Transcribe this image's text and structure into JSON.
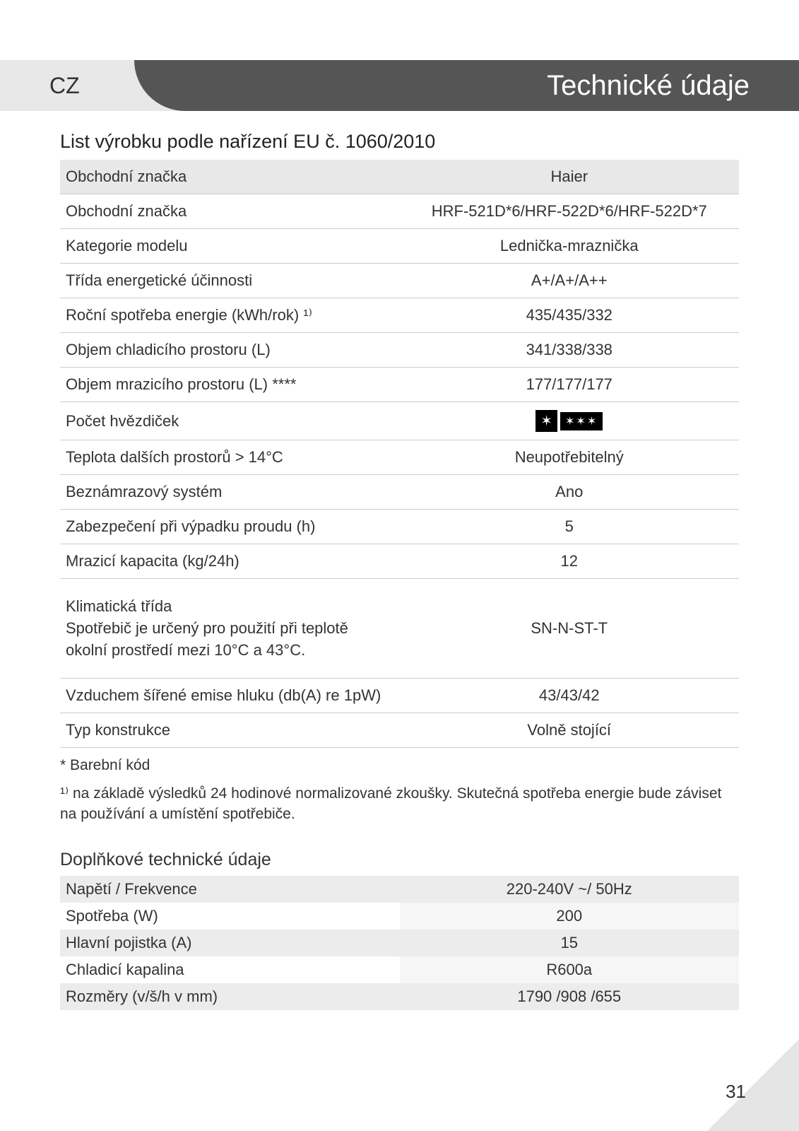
{
  "header": {
    "lang_code": "CZ",
    "title": "Technické údaje"
  },
  "section_title": "List výrobku podle nařízení EU č. 1060/2010",
  "spec_header": {
    "left": "Obchodní značka",
    "right": "Haier"
  },
  "specs": [
    {
      "label": "Obchodní značka",
      "value": "HRF-521D*6/HRF-522D*6/HRF-522D*7",
      "small": true
    },
    {
      "label": "Kategorie modelu",
      "value": "Lednička-mraznička"
    },
    {
      "label": "Třída energetické účinnosti",
      "value": "A+/A+/A++"
    },
    {
      "label": "Roční spotřeba energie (kWh/rok) ¹⁾",
      "value": "435/435/332"
    },
    {
      "label": "Objem chladicího prostoru (L)",
      "value": "341/338/338"
    },
    {
      "label": "Objem mrazicího prostoru (L) ****",
      "value": "177/177/177"
    },
    {
      "label": "Počet hvězdiček",
      "value": "__STARS__"
    },
    {
      "label": "Teplota dalších prostorů > 14°C",
      "value": "Neupotřebitelný"
    },
    {
      "label": "Beznámrazový systém",
      "value": "Ano"
    },
    {
      "label": "Zabezpečení při výpadku proudu (h)",
      "value": "5"
    },
    {
      "label": "Mrazicí kapacita (kg/24h)",
      "value": "12"
    },
    {
      "label": "Klimatická třída\nSpotřebič je určený pro použití při teplotě okolní prostředí mezi 10°C a 43°C.",
      "value": "SN-N-ST-T",
      "tall": true
    },
    {
      "label": "Vzduchem šířené emise hluku (db(A) re 1pW)",
      "value": "43/43/42"
    },
    {
      "label": "Typ konstrukce",
      "value": "Volně stojící"
    }
  ],
  "footnote1": "* Barební kód",
  "footnote2_prefix": "¹⁾ ",
  "footnote2": "na základě výsledků 24 hodinové normalizované zkoušky. Skutečná spotřeba energie bude záviset na používání a umístění spotřebiče.",
  "sub_section_title": "Doplňkové technické údaje",
  "sub_specs": [
    {
      "label": "Napětí / Frekvence",
      "value": "220-240V ~/ 50Hz"
    },
    {
      "label": "Spotřeba (W)",
      "value": "200"
    },
    {
      "label": "Hlavní pojistka (A)",
      "value": "15"
    },
    {
      "label": "Chladicí kapalina",
      "value": "R600a"
    },
    {
      "label": "Rozměry (v/š/h v mm)",
      "value": "1790 /908 /655"
    }
  ],
  "page_number": "31"
}
